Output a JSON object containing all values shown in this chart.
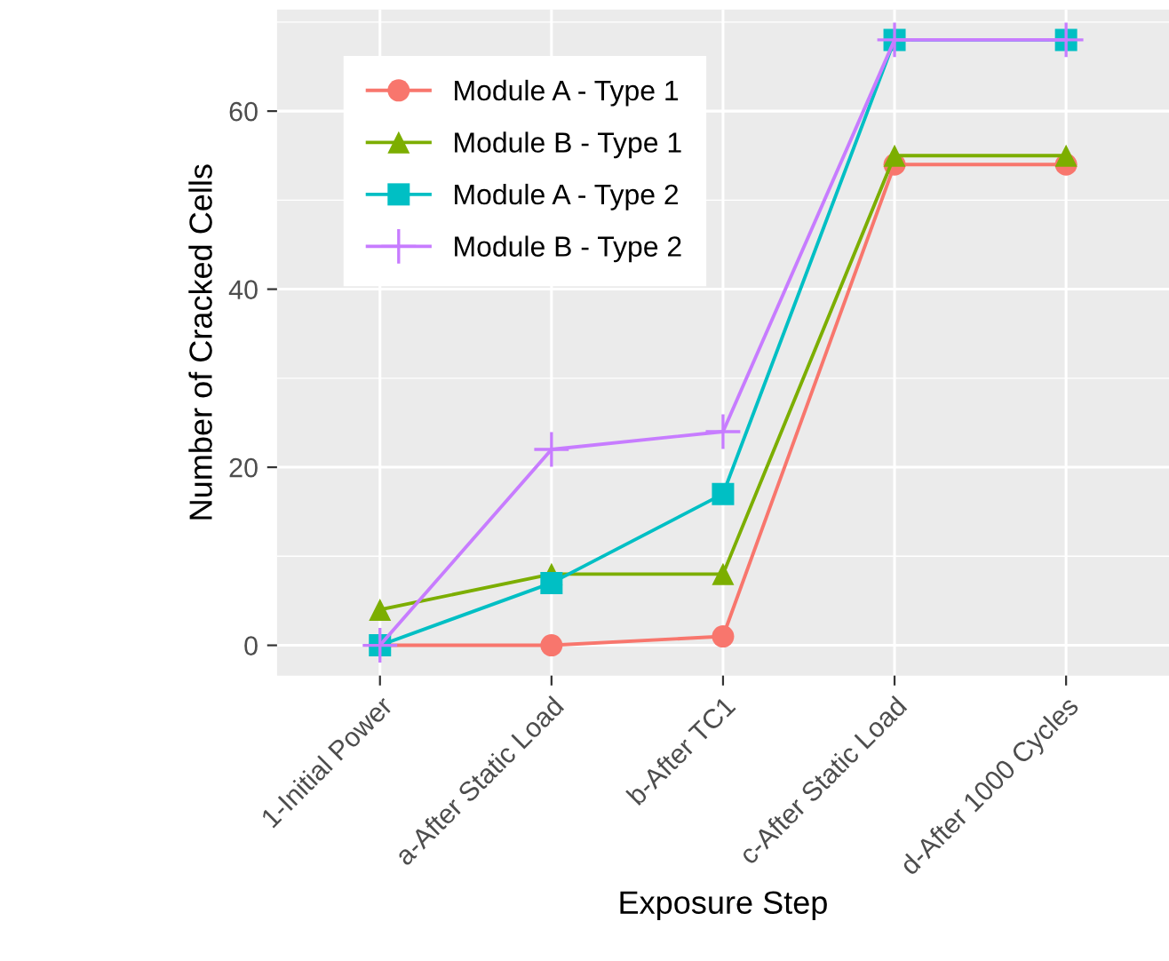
{
  "chart_data": {
    "type": "line",
    "xlabel": "Exposure Step",
    "ylabel": "Number of Cracked Cells",
    "categories": [
      "1-Initial Power",
      "a-After Static Load",
      "b-After TC1",
      "c-After Static Load",
      "d-After 1000 Cycles"
    ],
    "series": [
      {
        "name": "Module A - Type 1",
        "color": "#f8766d",
        "marker": "circle",
        "values": [
          0,
          0,
          1,
          54,
          54
        ]
      },
      {
        "name": "Module B - Type 1",
        "color": "#7cae00",
        "marker": "triangle",
        "values": [
          4,
          8,
          8,
          55,
          55
        ]
      },
      {
        "name": "Module A - Type 2",
        "color": "#00bfc4",
        "marker": "square",
        "values": [
          0,
          7,
          17,
          68,
          68
        ]
      },
      {
        "name": "Module B - Type 2",
        "color": "#c77cff",
        "marker": "cross",
        "values": [
          0,
          22,
          24,
          68,
          68
        ]
      }
    ],
    "ylim": [
      -3.4,
      71.4
    ],
    "yticks": [
      0,
      20,
      40,
      60
    ],
    "grid": true,
    "legend": "top left"
  }
}
